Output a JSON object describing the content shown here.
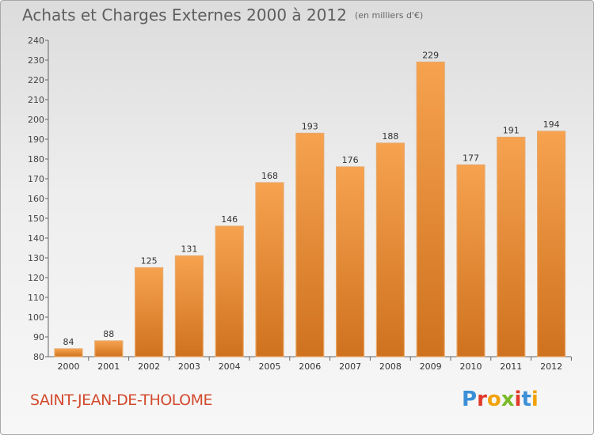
{
  "header": {
    "title": "Achats et Charges Externes 2000 à 2012",
    "unit": "(en milliers d'€)"
  },
  "footer": {
    "city": "SAINT-JEAN-DE-THOLOME",
    "brand": "Proxiti"
  },
  "colors": {
    "bar_top": "#f6a24f",
    "bar_bottom": "#cf721f",
    "city": "#d24a2e"
  },
  "chart_data": {
    "type": "bar",
    "title": "Achats et Charges Externes 2000 à 2012",
    "subtitle": "(en milliers d'€)",
    "xlabel": "",
    "ylabel": "",
    "categories": [
      "2000",
      "2001",
      "2002",
      "2003",
      "2004",
      "2005",
      "2006",
      "2007",
      "2008",
      "2009",
      "2010",
      "2011",
      "2012"
    ],
    "values": [
      84,
      88,
      125,
      131,
      146,
      168,
      193,
      176,
      188,
      229,
      177,
      191,
      194
    ],
    "ylim": [
      80,
      240
    ],
    "ytick_step": 10,
    "grid": false,
    "legend": "none",
    "data_labels": true
  }
}
